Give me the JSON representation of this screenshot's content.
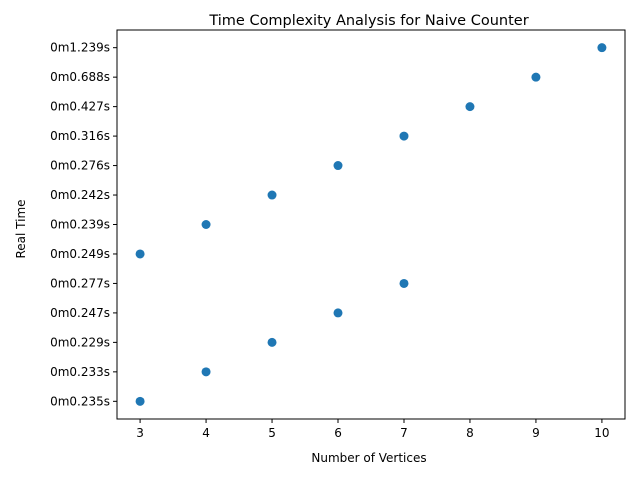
{
  "chart_data": {
    "type": "scatter",
    "title": "Time Complexity Analysis for Naive Counter",
    "xlabel": "Number of Vertices",
    "ylabel": "Real Time",
    "xlim": [
      2.65,
      10.35
    ],
    "x_ticks": [
      "3",
      "4",
      "5",
      "6",
      "7",
      "8",
      "9",
      "10"
    ],
    "y_categories": [
      "0m0.235s",
      "0m0.233s",
      "0m0.229s",
      "0m0.247s",
      "0m0.277s",
      "0m0.249s",
      "0m0.239s",
      "0m0.242s",
      "0m0.276s",
      "0m0.316s",
      "0m0.427s",
      "0m0.688s",
      "0m1.239s"
    ],
    "series": [
      {
        "color": "#1f77b4",
        "points": [
          {
            "x": 3,
            "y": "0m0.235s"
          },
          {
            "x": 4,
            "y": "0m0.233s"
          },
          {
            "x": 5,
            "y": "0m0.229s"
          },
          {
            "x": 6,
            "y": "0m0.247s"
          },
          {
            "x": 7,
            "y": "0m0.277s"
          },
          {
            "x": 3,
            "y": "0m0.249s"
          },
          {
            "x": 4,
            "y": "0m0.239s"
          },
          {
            "x": 5,
            "y": "0m0.242s"
          },
          {
            "x": 6,
            "y": "0m0.276s"
          },
          {
            "x": 7,
            "y": "0m0.316s"
          },
          {
            "x": 8,
            "y": "0m0.427s"
          },
          {
            "x": 9,
            "y": "0m0.688s"
          },
          {
            "x": 10,
            "y": "0m1.239s"
          }
        ]
      }
    ],
    "grid": false,
    "legend": false
  }
}
